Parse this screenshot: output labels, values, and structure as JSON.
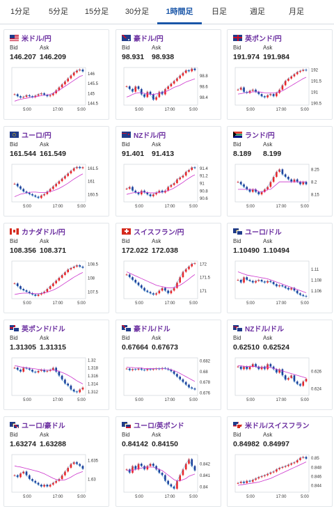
{
  "tabs": [
    {
      "label": "1分足",
      "active": false
    },
    {
      "label": "5分足",
      "active": false
    },
    {
      "label": "15分足",
      "active": false
    },
    {
      "label": "30分足",
      "active": false
    },
    {
      "label": "1時間足",
      "active": true
    },
    {
      "label": "日足",
      "active": false
    },
    {
      "label": "週足",
      "active": false
    },
    {
      "label": "月足",
      "active": false
    }
  ],
  "bid_label": "Bid",
  "ask_label": "Ask",
  "x_labels": [
    "5:00",
    "17:00",
    "5:00"
  ],
  "cards": [
    {
      "name": "米ドル/円",
      "flag": "us",
      "bid": "146.207",
      "ask": "146.209",
      "yticks": [
        "146",
        "145.5",
        "145",
        "144.5"
      ],
      "ymin": 144.4,
      "ymax": 146.3,
      "points": [
        144.95,
        144.85,
        144.78,
        144.82,
        144.9,
        144.85,
        144.8,
        144.88,
        144.95,
        145.0,
        144.92,
        144.85,
        144.9,
        145.0,
        145.15,
        145.3,
        145.45,
        145.6,
        145.75,
        145.9,
        146.05,
        146.15,
        146.2,
        146.1
      ],
      "ma": [
        144.6,
        144.65,
        144.7,
        144.72,
        144.75,
        144.78,
        144.8,
        144.82,
        144.85,
        144.88,
        144.9,
        144.92,
        144.95,
        145.0,
        145.08,
        145.15,
        145.25,
        145.35,
        145.45,
        145.55,
        145.65,
        145.75,
        145.85,
        145.9
      ]
    },
    {
      "name": "豪ドル/円",
      "flag": "au",
      "bid": "98.931",
      "ask": "98.938",
      "yticks": [
        "98.8",
        "98.6",
        "98.4"
      ],
      "ymin": 98.25,
      "ymax": 98.95,
      "points": [
        98.6,
        98.55,
        98.5,
        98.6,
        98.55,
        98.45,
        98.4,
        98.5,
        98.45,
        98.35,
        98.4,
        98.5,
        98.45,
        98.55,
        98.6,
        98.65,
        98.7,
        98.75,
        98.8,
        98.85,
        98.9,
        98.88,
        98.93,
        98.9
      ],
      "ma": [
        98.4,
        98.42,
        98.45,
        98.47,
        98.48,
        98.48,
        98.47,
        98.46,
        98.45,
        98.45,
        98.46,
        98.47,
        98.48,
        98.5,
        98.52,
        98.55,
        98.58,
        98.6,
        98.62,
        98.65,
        98.68,
        98.7,
        98.72,
        98.74
      ]
    },
    {
      "name": "英ポンド/円",
      "flag": "gb",
      "bid": "191.974",
      "ask": "191.984",
      "yticks": [
        "192",
        "191.5",
        "191",
        "190.5"
      ],
      "ymin": 190.4,
      "ymax": 192.1,
      "points": [
        191.1,
        191.2,
        191.0,
        190.95,
        191.05,
        191.1,
        191.0,
        190.9,
        190.8,
        190.75,
        190.85,
        190.9,
        190.8,
        190.95,
        191.1,
        191.3,
        191.5,
        191.6,
        191.7,
        191.8,
        191.9,
        191.95,
        192.0,
        191.97
      ],
      "ma": [
        190.9,
        190.92,
        190.95,
        190.97,
        190.98,
        191.0,
        191.0,
        191.0,
        190.98,
        190.96,
        190.95,
        190.95,
        190.95,
        190.97,
        191.0,
        191.05,
        191.12,
        191.2,
        191.28,
        191.36,
        191.44,
        191.52,
        191.6,
        191.66
      ]
    },
    {
      "name": "ユーロ/円",
      "flag": "eu",
      "bid": "161.544",
      "ask": "161.549",
      "yticks": [
        "161.5",
        "161",
        "160.5"
      ],
      "ymin": 160.2,
      "ymax": 161.65,
      "points": [
        160.9,
        160.8,
        160.7,
        160.6,
        160.55,
        160.5,
        160.45,
        160.4,
        160.35,
        160.45,
        160.5,
        160.6,
        160.7,
        160.8,
        160.9,
        161.0,
        161.1,
        161.2,
        161.3,
        161.4,
        161.5,
        161.55,
        161.5,
        161.54
      ],
      "ma": [
        160.4,
        160.45,
        160.5,
        160.52,
        160.55,
        160.57,
        160.58,
        160.58,
        160.57,
        160.56,
        160.56,
        160.58,
        160.6,
        160.63,
        160.67,
        160.72,
        160.78,
        160.85,
        160.92,
        161.0,
        161.08,
        161.15,
        161.22,
        161.28
      ]
    },
    {
      "name": "NZドル/円",
      "flag": "nz",
      "bid": "91.401",
      "ask": "91.413",
      "yticks": [
        "91.4",
        "91.2",
        "91",
        "90.8",
        "90.6"
      ],
      "ymin": 90.5,
      "ymax": 91.5,
      "points": [
        90.85,
        90.9,
        90.8,
        90.75,
        90.7,
        90.8,
        90.75,
        90.7,
        90.65,
        90.7,
        90.75,
        90.8,
        90.75,
        90.8,
        90.9,
        90.95,
        91.0,
        91.1,
        91.15,
        91.2,
        91.3,
        91.35,
        91.42,
        91.4
      ],
      "ma": [
        90.7,
        90.72,
        90.74,
        90.75,
        90.75,
        90.76,
        90.76,
        90.75,
        90.74,
        90.74,
        90.74,
        90.75,
        90.76,
        90.78,
        90.8,
        90.83,
        90.87,
        90.92,
        90.97,
        91.02,
        91.08,
        91.13,
        91.18,
        91.22
      ]
    },
    {
      "name": "ランド/円",
      "flag": "za",
      "bid": "8.189",
      "ask": "8.199",
      "yticks": [
        "8.25",
        "8.2",
        "8.15"
      ],
      "ymin": 8.12,
      "ymax": 8.27,
      "points": [
        8.2,
        8.19,
        8.18,
        8.17,
        8.16,
        8.17,
        8.16,
        8.15,
        8.16,
        8.17,
        8.18,
        8.2,
        8.22,
        8.24,
        8.25,
        8.23,
        8.22,
        8.21,
        8.2,
        8.21,
        8.2,
        8.19,
        8.2,
        8.19
      ],
      "ma": [
        8.17,
        8.17,
        8.17,
        8.17,
        8.17,
        8.17,
        8.17,
        8.16,
        8.16,
        8.16,
        8.17,
        8.17,
        8.18,
        8.19,
        8.2,
        8.2,
        8.2,
        8.2,
        8.2,
        8.2,
        8.2,
        8.2,
        8.2,
        8.2
      ]
    },
    {
      "name": "カナダドル/円",
      "flag": "ca",
      "bid": "108.356",
      "ask": "108.371",
      "yticks": [
        "108.5",
        "108",
        "107.5"
      ],
      "ymin": 107.25,
      "ymax": 108.6,
      "points": [
        107.8,
        107.7,
        107.6,
        107.55,
        107.5,
        107.45,
        107.4,
        107.35,
        107.4,
        107.45,
        107.5,
        107.6,
        107.7,
        107.8,
        107.9,
        108.0,
        108.1,
        108.2,
        108.3,
        108.35,
        108.4,
        108.45,
        108.4,
        108.36
      ],
      "ma": [
        107.4,
        107.42,
        107.44,
        107.45,
        107.45,
        107.45,
        107.44,
        107.43,
        107.43,
        107.44,
        107.45,
        107.48,
        107.52,
        107.56,
        107.61,
        107.67,
        107.74,
        107.81,
        107.88,
        107.95,
        108.02,
        108.08,
        108.14,
        108.19
      ]
    },
    {
      "name": "スイスフラン/円",
      "flag": "ch",
      "bid": "172.022",
      "ask": "172.038",
      "yticks": [
        "172",
        "171.5",
        "171"
      ],
      "ymin": 170.7,
      "ymax": 172.1,
      "points": [
        171.6,
        171.5,
        171.4,
        171.3,
        171.2,
        171.1,
        171.0,
        170.95,
        170.9,
        170.85,
        170.9,
        171.0,
        171.1,
        171.0,
        170.9,
        171.0,
        171.1,
        171.3,
        171.5,
        171.7,
        171.8,
        171.9,
        172.0,
        172.02
      ],
      "ma": [
        171.7,
        171.65,
        171.6,
        171.55,
        171.5,
        171.45,
        171.4,
        171.35,
        171.3,
        171.25,
        171.2,
        171.17,
        171.15,
        171.12,
        171.1,
        171.1,
        171.12,
        171.15,
        171.2,
        171.27,
        171.35,
        171.43,
        171.52,
        171.6
      ]
    },
    {
      "name": "ユーロ/ドル",
      "flag": "euus",
      "bid": "1.10490",
      "ask": "1.10494",
      "yticks": [
        "1.11",
        "1.108",
        "1.106"
      ],
      "ymin": 1.1045,
      "ymax": 1.1115,
      "points": [
        1.108,
        1.1075,
        1.1085,
        1.108,
        1.1078,
        1.1075,
        1.1078,
        1.108,
        1.1077,
        1.1075,
        1.1078,
        1.1076,
        1.1072,
        1.1068,
        1.107,
        1.1068,
        1.1065,
        1.1062,
        1.1065,
        1.106,
        1.1055,
        1.1052,
        1.105,
        1.1049
      ],
      "ma": [
        1.1095,
        1.1093,
        1.1091,
        1.1089,
        1.1088,
        1.1087,
        1.1086,
        1.1085,
        1.1084,
        1.1083,
        1.1082,
        1.108,
        1.1078,
        1.1076,
        1.1074,
        1.1072,
        1.107,
        1.1068,
        1.1066,
        1.1064,
        1.1062,
        1.106,
        1.1058,
        1.1056
      ]
    },
    {
      "name": "英ポンド/ドル",
      "flag": "gbus",
      "bid": "1.31305",
      "ask": "1.31315",
      "yticks": [
        "1.32",
        "1.318",
        "1.316",
        "1.314",
        "1.312"
      ],
      "ymin": 1.311,
      "ymax": 1.3205,
      "points": [
        1.318,
        1.3175,
        1.317,
        1.318,
        1.3178,
        1.3175,
        1.317,
        1.3168,
        1.3172,
        1.3175,
        1.317,
        1.3172,
        1.3175,
        1.318,
        1.317,
        1.316,
        1.315,
        1.314,
        1.3135,
        1.3125,
        1.312,
        1.3118,
        1.3125,
        1.313
      ],
      "ma": [
        1.3185,
        1.3184,
        1.3182,
        1.3181,
        1.318,
        1.3179,
        1.3178,
        1.3177,
        1.3176,
        1.3175,
        1.3174,
        1.3174,
        1.3174,
        1.3174,
        1.3173,
        1.3171,
        1.3168,
        1.3165,
        1.3161,
        1.3157,
        1.3152,
        1.3147,
        1.3143,
        1.3139
      ]
    },
    {
      "name": "豪ドル/ドル",
      "flag": "auus",
      "bid": "0.67664",
      "ask": "0.67673",
      "yticks": [
        "0.682",
        "0.68",
        "0.678",
        "0.676"
      ],
      "ymin": 0.6755,
      "ymax": 0.6825,
      "points": [
        0.6805,
        0.6802,
        0.6804,
        0.6803,
        0.6805,
        0.6803,
        0.6802,
        0.6804,
        0.6803,
        0.6804,
        0.6805,
        0.6804,
        0.6806,
        0.6805,
        0.6803,
        0.68,
        0.6795,
        0.679,
        0.6785,
        0.678,
        0.6775,
        0.677,
        0.6768,
        0.6766
      ],
      "ma": [
        0.6808,
        0.6807,
        0.6807,
        0.6806,
        0.6806,
        0.6806,
        0.6805,
        0.6805,
        0.6805,
        0.6805,
        0.6805,
        0.6805,
        0.6805,
        0.6805,
        0.6804,
        0.6803,
        0.6801,
        0.6799,
        0.6796,
        0.6793,
        0.679,
        0.6787,
        0.6784,
        0.6781
      ]
    },
    {
      "name": "NZドル/ドル",
      "flag": "nzus",
      "bid": "0.62510",
      "ask": "0.62524",
      "yticks": [
        "0.626",
        "0.624"
      ],
      "ymin": 0.6232,
      "ymax": 0.6275,
      "points": [
        0.6265,
        0.6262,
        0.6265,
        0.6262,
        0.6265,
        0.6268,
        0.6265,
        0.6262,
        0.6265,
        0.6262,
        0.6268,
        0.6265,
        0.6262,
        0.6258,
        0.6262,
        0.6255,
        0.625,
        0.6252,
        0.6255,
        0.6248,
        0.6245,
        0.6243,
        0.6248,
        0.6251
      ],
      "ma": [
        0.6266,
        0.6266,
        0.6265,
        0.6265,
        0.6265,
        0.6265,
        0.6265,
        0.6264,
        0.6264,
        0.6264,
        0.6264,
        0.6264,
        0.6263,
        0.6262,
        0.6261,
        0.626,
        0.6259,
        0.6258,
        0.6257,
        0.6256,
        0.6255,
        0.6254,
        0.6253,
        0.6252
      ]
    },
    {
      "name": "ユーロ/豪ドル",
      "flag": "euau",
      "bid": "1.63274",
      "ask": "1.63288",
      "yticks": [
        "1.635",
        "1.63"
      ],
      "ymin": 1.6265,
      "ymax": 1.6365,
      "points": [
        1.631,
        1.6305,
        1.6315,
        1.632,
        1.631,
        1.63,
        1.6295,
        1.629,
        1.6285,
        1.628,
        1.6285,
        1.628,
        1.6285,
        1.629,
        1.6295,
        1.63,
        1.631,
        1.632,
        1.633,
        1.634,
        1.6345,
        1.634,
        1.6335,
        1.6327
      ],
      "ma": [
        1.6335,
        1.6333,
        1.6332,
        1.633,
        1.6328,
        1.6326,
        1.6324,
        1.6322,
        1.632,
        1.6317,
        1.6314,
        1.631,
        1.6306,
        1.6302,
        1.6299,
        1.6297,
        1.6297,
        1.6298,
        1.6301,
        1.6305,
        1.631,
        1.6314,
        1.6317,
        1.632
      ]
    },
    {
      "name": "ユーロ/英ポンド",
      "flag": "eugb",
      "bid": "0.84142",
      "ask": "0.84150",
      "yticks": [
        "0.842",
        "0.841",
        "0.84"
      ],
      "ymin": 0.8395,
      "ymax": 0.8428,
      "points": [
        0.8415,
        0.8412,
        0.8418,
        0.8415,
        0.842,
        0.8418,
        0.8415,
        0.8418,
        0.842,
        0.8418,
        0.8415,
        0.8412,
        0.841,
        0.8405,
        0.8402,
        0.84,
        0.8398,
        0.8405,
        0.841,
        0.8415,
        0.842,
        0.8424,
        0.8418,
        0.8414
      ],
      "ma": [
        0.8414,
        0.8414,
        0.8414,
        0.8415,
        0.8416,
        0.8416,
        0.8417,
        0.8417,
        0.8417,
        0.8417,
        0.8416,
        0.8415,
        0.8414,
        0.8412,
        0.841,
        0.8408,
        0.8406,
        0.8405,
        0.8405,
        0.8406,
        0.8407,
        0.8409,
        0.841,
        0.8411
      ]
    },
    {
      "name": "米ドル/スイスフラン",
      "flag": "usch",
      "bid": "0.84982",
      "ask": "0.84997",
      "yticks": [
        "0.85",
        "0.848",
        "0.846",
        "0.844"
      ],
      "ymin": 0.8425,
      "ymax": 0.8507,
      "points": [
        0.8445,
        0.8448,
        0.8445,
        0.845,
        0.8448,
        0.8452,
        0.8455,
        0.8458,
        0.846,
        0.8462,
        0.8465,
        0.8468,
        0.847,
        0.8475,
        0.8478,
        0.848,
        0.8482,
        0.8485,
        0.8488,
        0.849,
        0.8495,
        0.85,
        0.8502,
        0.8498
      ],
      "ma": [
        0.844,
        0.8441,
        0.8442,
        0.8443,
        0.8444,
        0.8445,
        0.8446,
        0.8447,
        0.8449,
        0.8451,
        0.8453,
        0.8455,
        0.8458,
        0.8461,
        0.8464,
        0.8467,
        0.847,
        0.8473,
        0.8476,
        0.8479,
        0.8482,
        0.8485,
        0.8488,
        0.8491
      ]
    }
  ]
}
